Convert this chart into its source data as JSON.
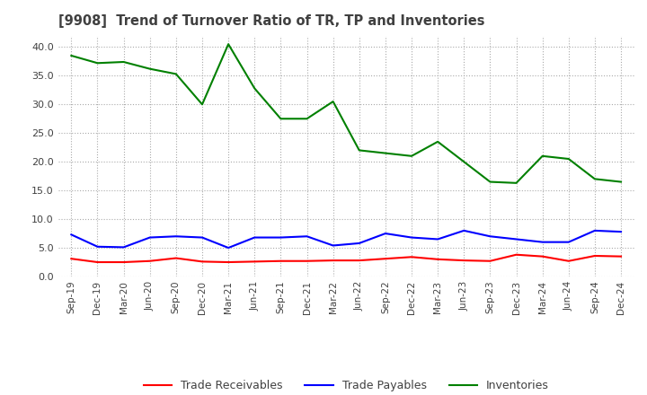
{
  "title": "[9908]  Trend of Turnover Ratio of TR, TP and Inventories",
  "x_labels": [
    "Sep-19",
    "Dec-19",
    "Mar-20",
    "Jun-20",
    "Sep-20",
    "Dec-20",
    "Mar-21",
    "Jun-21",
    "Sep-21",
    "Dec-21",
    "Mar-22",
    "Jun-22",
    "Sep-22",
    "Dec-22",
    "Mar-23",
    "Jun-23",
    "Sep-23",
    "Dec-23",
    "Mar-24",
    "Jun-24",
    "Sep-24",
    "Dec-24"
  ],
  "trade_receivables": [
    3.1,
    2.5,
    2.5,
    2.7,
    3.2,
    2.6,
    2.5,
    2.6,
    2.7,
    2.7,
    2.8,
    2.8,
    3.1,
    3.4,
    3.0,
    2.8,
    2.7,
    3.8,
    3.5,
    2.7,
    3.6,
    3.5
  ],
  "trade_payables": [
    7.3,
    5.2,
    5.1,
    6.8,
    7.0,
    6.8,
    5.0,
    6.8,
    6.8,
    7.0,
    5.4,
    5.8,
    7.5,
    6.8,
    6.5,
    8.0,
    7.0,
    6.5,
    6.0,
    6.0,
    8.0,
    7.8
  ],
  "inventories": [
    38.5,
    37.2,
    37.4,
    36.2,
    35.3,
    30.0,
    40.5,
    32.8,
    27.5,
    27.5,
    30.5,
    22.0,
    21.5,
    21.0,
    23.5,
    20.0,
    16.5,
    16.3,
    21.0,
    20.5,
    17.0,
    16.5
  ],
  "tr_color": "#ff0000",
  "tp_color": "#0000ff",
  "inv_color": "#008000",
  "ylim": [
    0,
    42
  ],
  "yticks": [
    0.0,
    5.0,
    10.0,
    15.0,
    20.0,
    25.0,
    30.0,
    35.0,
    40.0
  ],
  "bg_color": "#ffffff",
  "plot_bg_color": "#ffffff",
  "grid_color": "#aaaaaa",
  "title_color": "#404040",
  "legend_labels": [
    "Trade Receivables",
    "Trade Payables",
    "Inventories"
  ]
}
